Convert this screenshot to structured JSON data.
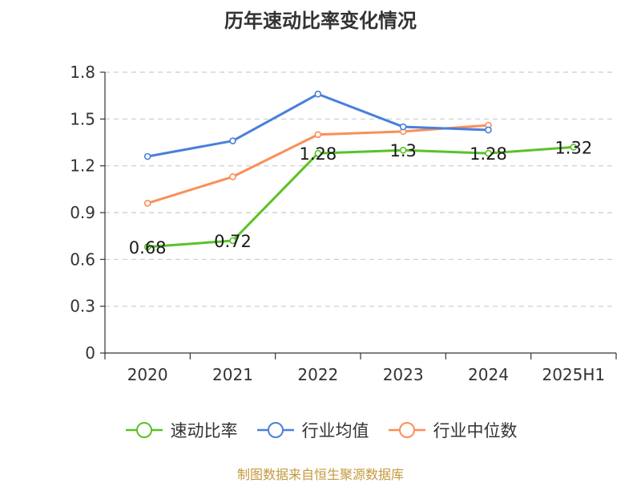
{
  "chart_data": {
    "type": "line",
    "title": "历年速动比率变化情况",
    "categories": [
      "2020",
      "2021",
      "2022",
      "2023",
      "2024",
      "2025H1"
    ],
    "ylim": [
      0,
      1.8
    ],
    "yticks": [
      "0",
      "0.3",
      "0.6",
      "0.9",
      "1.2",
      "1.5",
      "1.8"
    ],
    "grid": "horizontal dashed",
    "legend_position": "bottom",
    "series": [
      {
        "name": "速动比率",
        "color": "#5cc127",
        "values": [
          0.68,
          0.72,
          1.28,
          1.3,
          1.28,
          1.32
        ],
        "data_labels": [
          "0.68",
          "0.72",
          "1.28",
          "1.3",
          "1.28",
          "1.32"
        ]
      },
      {
        "name": "行业均值",
        "color": "#4a7fdb",
        "values": [
          1.26,
          1.36,
          1.66,
          1.45,
          1.43,
          null
        ]
      },
      {
        "name": "行业中位数",
        "color": "#fa8f59",
        "values": [
          0.96,
          1.13,
          1.4,
          1.42,
          1.46,
          null
        ]
      }
    ]
  },
  "source": "制图数据来自恒生聚源数据库"
}
